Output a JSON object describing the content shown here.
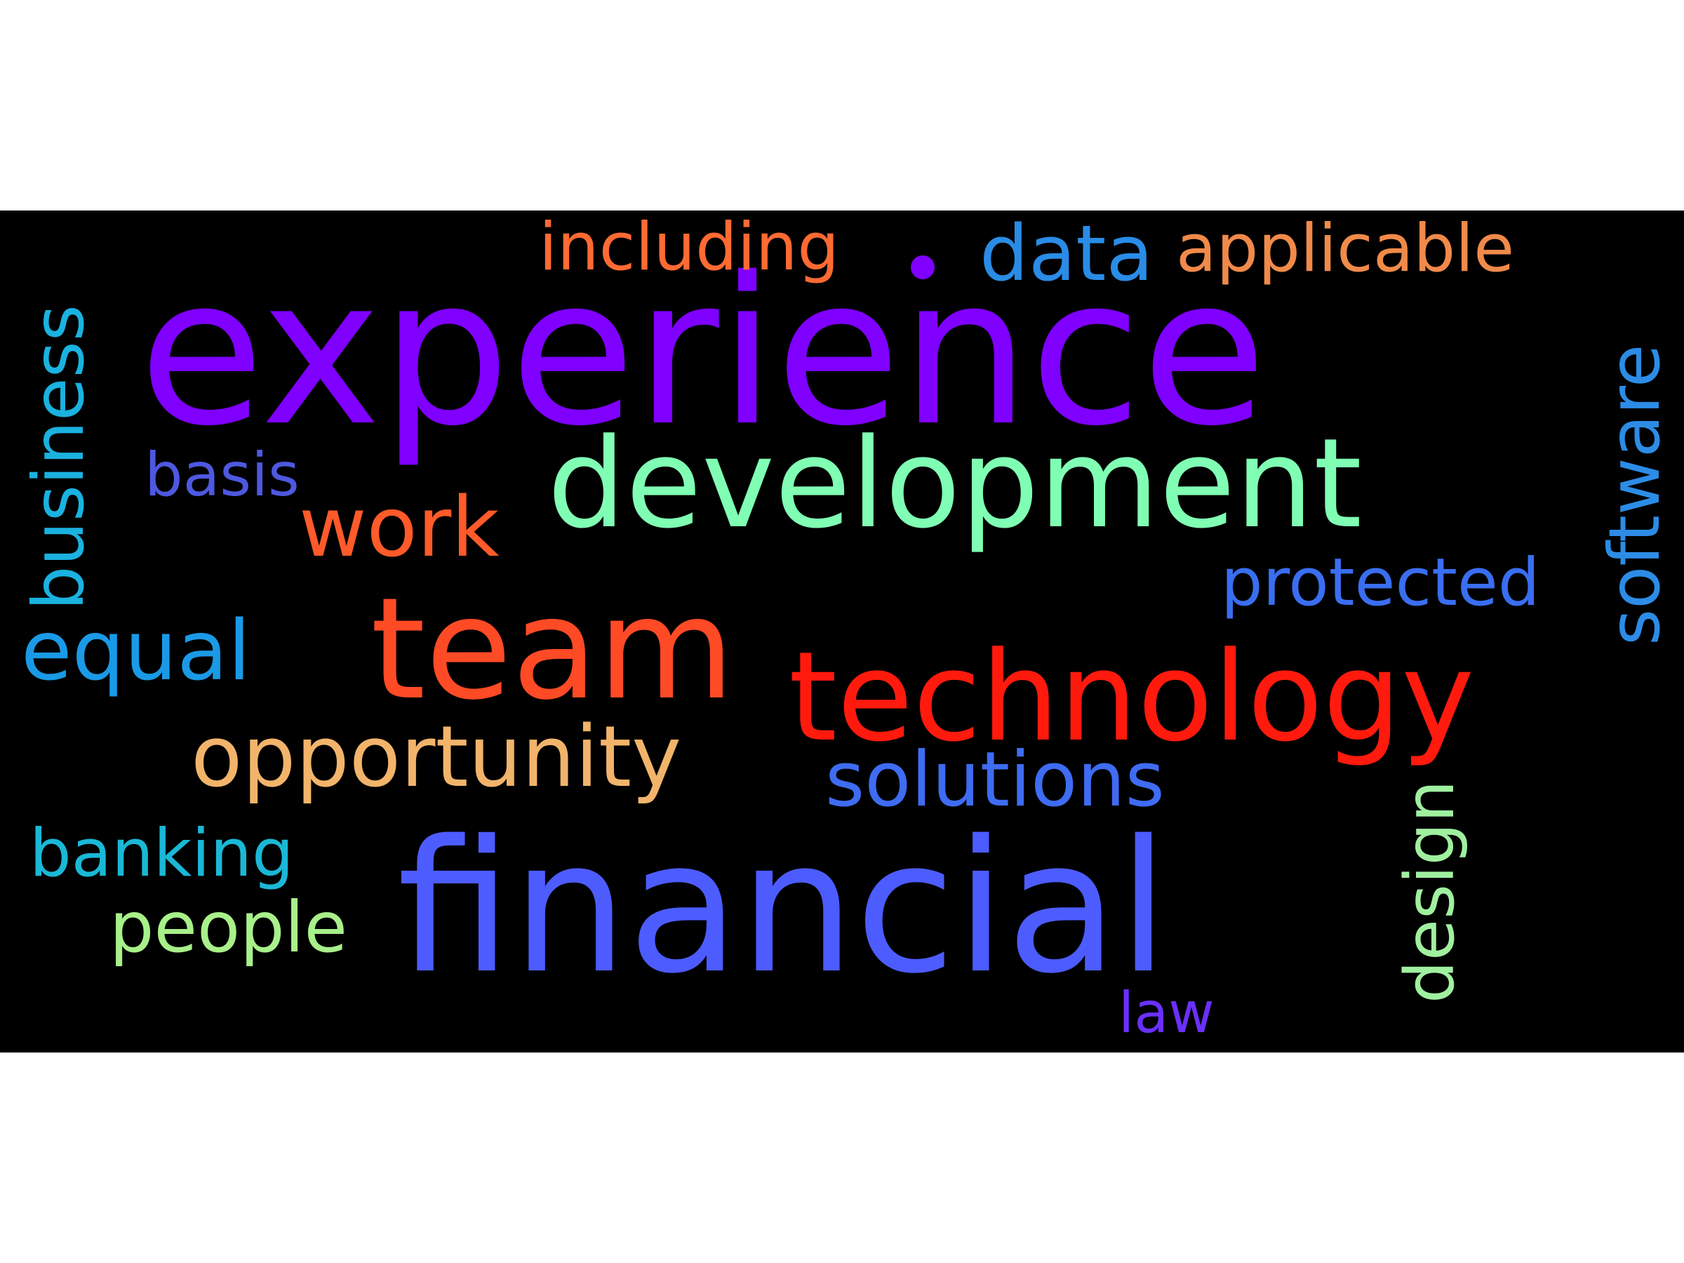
{
  "words": [
    {
      "text": "experience",
      "color": "#7f00ff"
    },
    {
      "text": "development",
      "color": "#80ffb4"
    },
    {
      "text": "team",
      "color": "#ff4a26"
    },
    {
      "text": "technology",
      "color": "#ff1a0d"
    },
    {
      "text": "financial",
      "color": "#4d5cff"
    },
    {
      "text": "opportunity",
      "color": "#f2b46b"
    },
    {
      "text": "solutions",
      "color": "#3e6cf2"
    },
    {
      "text": "software",
      "color": "#2c8ce6"
    },
    {
      "text": "business",
      "color": "#1ab2e0"
    },
    {
      "text": "equal",
      "color": "#1a9ae6"
    },
    {
      "text": "work",
      "color": "#ff5a2a"
    },
    {
      "text": "basis",
      "color": "#4e58e0"
    },
    {
      "text": "including",
      "color": "#ff6a33"
    },
    {
      "text": "data",
      "color": "#2a8ce6"
    },
    {
      "text": "applicable",
      "color": "#f08a4a"
    },
    {
      "text": "protected",
      "color": "#3a6ef0"
    },
    {
      "text": "banking",
      "color": "#1ab8d6"
    },
    {
      "text": "people",
      "color": "#a8f08a"
    },
    {
      "text": "design",
      "color": "#a0f0a0"
    },
    {
      "text": "law",
      "color": "#6a30ff"
    }
  ],
  "dot_color": "#7f00ff"
}
